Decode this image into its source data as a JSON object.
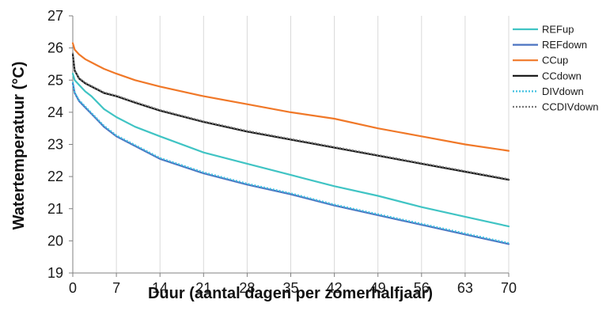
{
  "chart_data": {
    "type": "line",
    "title": "",
    "xlabel": "Duur (aantal dagen per zomerhalfjaar)",
    "ylabel": "Watertemperatuur (°C)",
    "xlim": [
      0,
      70
    ],
    "ylim": [
      19,
      27
    ],
    "xticks": [
      "0",
      "7",
      "14",
      "21",
      "28",
      "35",
      "42",
      "49",
      "56",
      "63",
      "70"
    ],
    "yticks": [
      "19",
      "20",
      "21",
      "22",
      "23",
      "24",
      "25",
      "26",
      "27"
    ],
    "grid": "vertical",
    "legend_position": "right",
    "series": [
      {
        "name": "REFup",
        "color": "#40c4c4",
        "dash": "solid",
        "x": [
          0,
          0.3,
          1,
          2,
          3,
          4,
          5,
          7,
          10,
          14,
          21,
          28,
          35,
          42,
          49,
          56,
          63,
          70
        ],
        "y": [
          25.2,
          25.0,
          24.85,
          24.65,
          24.5,
          24.3,
          24.1,
          23.85,
          23.55,
          23.25,
          22.75,
          22.4,
          22.05,
          21.7,
          21.4,
          21.05,
          20.75,
          20.45
        ]
      },
      {
        "name": "REFdown",
        "color": "#4a72c0",
        "dash": "solid",
        "x": [
          0,
          0.3,
          1,
          2,
          3,
          4,
          5,
          7,
          10,
          14,
          21,
          28,
          35,
          42,
          49,
          56,
          63,
          70
        ],
        "y": [
          24.9,
          24.6,
          24.35,
          24.15,
          23.95,
          23.75,
          23.55,
          23.25,
          22.95,
          22.55,
          22.1,
          21.75,
          21.45,
          21.1,
          20.8,
          20.5,
          20.2,
          19.9
        ]
      },
      {
        "name": "CCup",
        "color": "#f07828",
        "dash": "solid",
        "x": [
          0,
          0.3,
          1,
          2,
          3,
          4,
          5,
          7,
          10,
          14,
          21,
          28,
          35,
          42,
          49,
          56,
          63,
          70
        ],
        "y": [
          26.15,
          25.95,
          25.8,
          25.65,
          25.55,
          25.45,
          25.35,
          25.2,
          25.0,
          24.8,
          24.5,
          24.25,
          24.0,
          23.8,
          23.5,
          23.25,
          23.0,
          22.8
        ]
      },
      {
        "name": "CCdown",
        "color": "#111111",
        "dash": "solid",
        "x": [
          0,
          0.3,
          1,
          2,
          3,
          4,
          5,
          7,
          10,
          14,
          21,
          28,
          35,
          42,
          49,
          56,
          63,
          70
        ],
        "y": [
          25.8,
          25.3,
          25.05,
          24.9,
          24.8,
          24.7,
          24.6,
          24.5,
          24.3,
          24.05,
          23.7,
          23.4,
          23.15,
          22.9,
          22.65,
          22.4,
          22.15,
          21.9
        ]
      },
      {
        "name": "DIVdown",
        "color": "#40c0e0",
        "dash": "dotted",
        "x": [
          0,
          0.3,
          1,
          2,
          3,
          4,
          5,
          7,
          10,
          14,
          21,
          28,
          35,
          42,
          49,
          56,
          63,
          70
        ],
        "y": [
          24.95,
          24.62,
          24.38,
          24.18,
          23.98,
          23.78,
          23.58,
          23.28,
          22.98,
          22.58,
          22.13,
          21.78,
          21.48,
          21.13,
          20.83,
          20.53,
          20.23,
          19.93
        ]
      },
      {
        "name": "CCDIVdown",
        "color": "#777777",
        "dash": "dotted",
        "x": [
          0,
          0.3,
          1,
          2,
          3,
          4,
          5,
          7,
          10,
          14,
          21,
          28,
          35,
          42,
          49,
          56,
          63,
          70
        ],
        "y": [
          25.85,
          25.32,
          25.07,
          24.92,
          24.82,
          24.72,
          24.62,
          24.52,
          24.32,
          24.07,
          23.72,
          23.42,
          23.17,
          22.92,
          22.67,
          22.42,
          22.17,
          21.92
        ]
      }
    ]
  }
}
